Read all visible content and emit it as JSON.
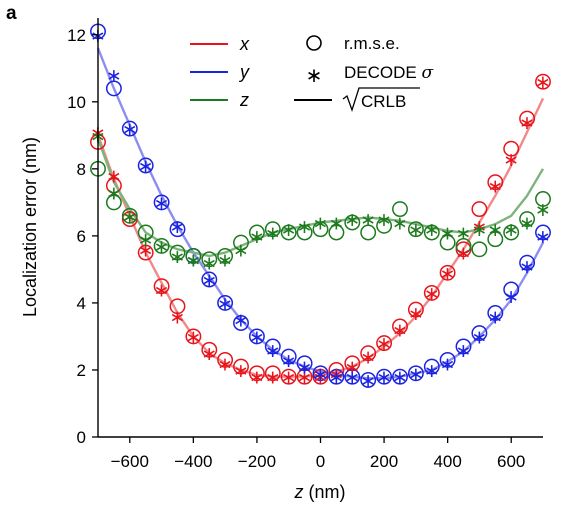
{
  "panel_label": "a",
  "colors": {
    "x": "#e8141b",
    "y": "#1a24e0",
    "z": "#1d7a1d",
    "x_line": "#f08a8a",
    "y_line": "#8e8ef0",
    "z_line": "#7cb47c"
  },
  "legend": {
    "series": [
      {
        "key": "x",
        "label": "x"
      },
      {
        "key": "y",
        "label": "y"
      },
      {
        "key": "z",
        "label": "z"
      }
    ],
    "markers": {
      "rmse": "r.m.s.e.",
      "decode_prefix": "DECODE ",
      "decode_sigma": "σ",
      "crlb": "CRLB"
    }
  },
  "chart_data": {
    "type": "line",
    "xlabel_var": "z",
    "xlabel_unit": " (nm)",
    "ylabel": "Localization error (nm)",
    "xlim": [
      -700,
      700
    ],
    "ylim": [
      0,
      12.5
    ],
    "xticks": [
      -600,
      -400,
      -200,
      0,
      200,
      400,
      600
    ],
    "xtick_labels": [
      "−600",
      "−400",
      "−200",
      "0",
      "200",
      "400",
      "600"
    ],
    "yticks": [
      0,
      2,
      4,
      6,
      8,
      10,
      12
    ],
    "ytick_labels": [
      "0",
      "2",
      "4",
      "6",
      "8",
      "10",
      "12"
    ],
    "x": [
      -700,
      -650,
      -600,
      -550,
      -500,
      -450,
      -400,
      -350,
      -300,
      -250,
      -200,
      -150,
      -100,
      -50,
      0,
      50,
      100,
      150,
      200,
      250,
      300,
      350,
      400,
      450,
      500,
      550,
      600,
      650,
      700
    ],
    "series": [
      {
        "name": "x",
        "metric": "r.m.s.e.",
        "values": [
          8.8,
          7.5,
          6.5,
          5.5,
          4.5,
          3.9,
          3.0,
          2.6,
          2.3,
          2.1,
          1.9,
          1.9,
          1.8,
          1.8,
          1.8,
          2.0,
          2.2,
          2.5,
          2.8,
          3.3,
          3.8,
          4.3,
          4.9,
          5.6,
          6.8,
          7.6,
          8.6,
          9.5,
          10.6
        ]
      },
      {
        "name": "x",
        "metric": "DECODE σ",
        "values": [
          9.1,
          7.8,
          6.6,
          5.6,
          4.4,
          3.6,
          3.0,
          2.5,
          2.2,
          2.0,
          1.8,
          1.8,
          1.8,
          1.8,
          1.8,
          1.9,
          2.1,
          2.4,
          2.8,
          3.2,
          3.7,
          4.3,
          4.9,
          5.5,
          6.3,
          7.5,
          8.3,
          9.4,
          10.6
        ]
      },
      {
        "name": "x",
        "metric": "√CRLB",
        "values": [
          9.0,
          7.7,
          6.6,
          5.5,
          4.6,
          3.7,
          3.0,
          2.5,
          2.2,
          2.0,
          1.85,
          1.8,
          1.8,
          1.8,
          1.85,
          1.95,
          2.1,
          2.35,
          2.7,
          3.1,
          3.6,
          4.2,
          4.9,
          5.6,
          6.4,
          7.2,
          8.1,
          9.1,
          10.1
        ]
      },
      {
        "name": "y",
        "metric": "r.m.s.e.",
        "values": [
          12.1,
          10.4,
          9.2,
          8.1,
          7.0,
          6.2,
          5.4,
          4.7,
          4.0,
          3.4,
          3.0,
          2.7,
          2.4,
          2.2,
          1.9,
          1.8,
          1.8,
          1.7,
          1.8,
          1.8,
          1.9,
          2.1,
          2.3,
          2.7,
          3.1,
          3.7,
          4.4,
          5.2,
          6.1
        ]
      },
      {
        "name": "y",
        "metric": "DECODE σ",
        "values": [
          12.0,
          10.8,
          9.2,
          8.1,
          7.0,
          6.3,
          5.3,
          4.7,
          4.0,
          3.5,
          3.0,
          2.6,
          2.3,
          2.1,
          1.9,
          1.8,
          1.8,
          1.7,
          1.8,
          1.8,
          1.9,
          2.0,
          2.2,
          2.6,
          3.0,
          3.6,
          4.2,
          5.1,
          6.0
        ]
      },
      {
        "name": "y",
        "metric": "√CRLB",
        "values": [
          11.6,
          10.4,
          9.3,
          8.2,
          7.2,
          6.3,
          5.5,
          4.8,
          4.1,
          3.5,
          3.0,
          2.6,
          2.3,
          2.1,
          1.95,
          1.85,
          1.8,
          1.75,
          1.75,
          1.8,
          1.9,
          2.0,
          2.25,
          2.55,
          3.0,
          3.5,
          4.1,
          4.9,
          5.8
        ]
      },
      {
        "name": "z",
        "metric": "r.m.s.e.",
        "values": [
          8.0,
          7.0,
          6.6,
          6.1,
          5.7,
          5.5,
          5.4,
          5.3,
          5.4,
          5.8,
          6.1,
          6.2,
          6.1,
          6.1,
          6.2,
          6.1,
          6.4,
          6.1,
          6.3,
          6.8,
          6.2,
          6.1,
          5.8,
          5.7,
          5.6,
          5.9,
          6.1,
          6.5,
          7.1
        ]
      },
      {
        "name": "z",
        "metric": "DECODE σ",
        "values": [
          9.0,
          7.3,
          6.6,
          5.9,
          5.7,
          5.4,
          5.3,
          5.2,
          5.3,
          5.6,
          6.0,
          6.1,
          6.2,
          6.3,
          6.4,
          6.4,
          6.5,
          6.5,
          6.5,
          6.4,
          6.2,
          6.2,
          6.1,
          6.1,
          6.2,
          6.2,
          6.2,
          6.4,
          6.8
        ]
      },
      {
        "name": "z",
        "metric": "√CRLB",
        "values": [
          8.9,
          7.6,
          6.8,
          6.1,
          5.8,
          5.6,
          5.5,
          5.4,
          5.5,
          5.7,
          5.9,
          6.1,
          6.2,
          6.3,
          6.4,
          6.45,
          6.5,
          6.55,
          6.5,
          6.45,
          6.35,
          6.25,
          6.15,
          6.1,
          6.2,
          6.35,
          6.6,
          7.2,
          8.0
        ]
      }
    ]
  }
}
